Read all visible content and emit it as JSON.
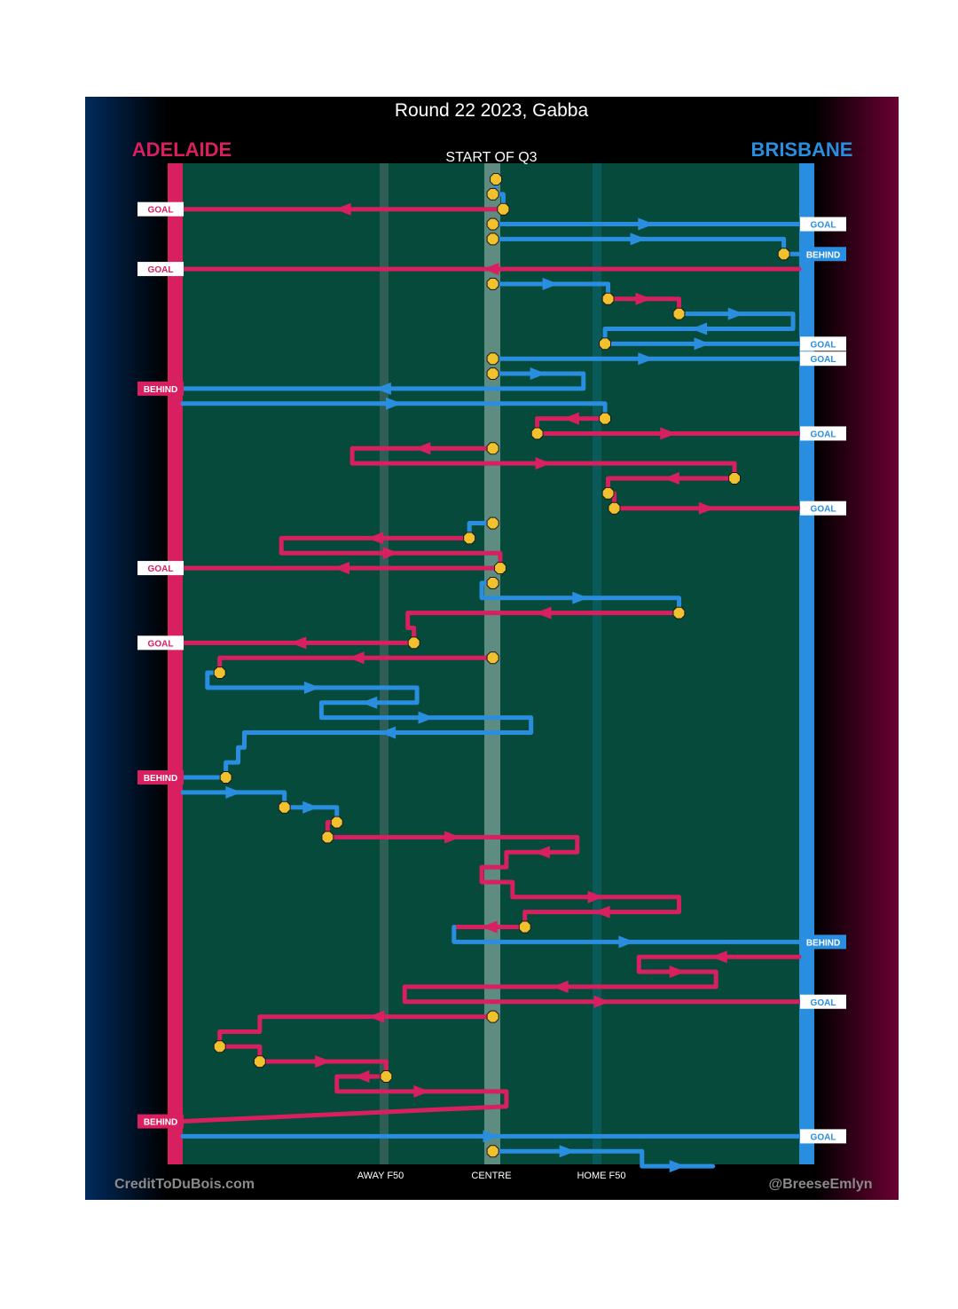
{
  "chart_data": {
    "type": "flow",
    "title": "Round 22 2023, Gabba",
    "subtitle": "START OF Q3",
    "teams": {
      "left": "ADELAIDE",
      "right": "BRISBANE"
    },
    "x_labels": [
      "AWAY F50",
      "CENTRE",
      "HOME F50"
    ],
    "credit_left": "CreditToDuBois.com",
    "credit_right": "@BreeseEmlyn",
    "colors": {
      "adelaide": "#d81f5f",
      "brisbane": "#2a8ee0",
      "field": "#064a3c",
      "marker": "#f2c12e",
      "title_bg": "#000000",
      "left_grad": "#002a5c",
      "right_grad": "#6b0032"
    },
    "x_axis_note": "x positions in percent of ground from Adelaide goal (0) to Brisbane goal (100); stoppage markers as level index",
    "key_lines": {
      "away_f50": 34.5,
      "centre": 50.5,
      "home_f50": 67.5
    },
    "results": [
      {
        "level": 2,
        "team": "adelaide",
        "label": "GOAL"
      },
      {
        "level": 3,
        "team": "brisbane",
        "label": "GOAL"
      },
      {
        "level": 5,
        "team": "brisbane",
        "label": "BEHIND"
      },
      {
        "level": 6,
        "team": "adelaide",
        "label": "GOAL"
      },
      {
        "level": 11,
        "team": "brisbane",
        "label": "GOAL"
      },
      {
        "level": 12,
        "team": "brisbane",
        "label": "GOAL"
      },
      {
        "level": 14,
        "team": "adelaide",
        "label": "BEHIND"
      },
      {
        "level": 17,
        "team": "brisbane",
        "label": "GOAL"
      },
      {
        "level": 22,
        "team": "brisbane",
        "label": "GOAL"
      },
      {
        "level": 26,
        "team": "adelaide",
        "label": "GOAL"
      },
      {
        "level": 31,
        "team": "adelaide",
        "label": "GOAL"
      },
      {
        "level": 40,
        "team": "adelaide",
        "label": "BEHIND"
      },
      {
        "level": 51,
        "team": "brisbane",
        "label": "BEHIND"
      },
      {
        "level": 55,
        "team": "brisbane",
        "label": "GOAL"
      },
      {
        "level": 63,
        "team": "adelaide",
        "label": "BEHIND"
      },
      {
        "level": 64,
        "team": "brisbane",
        "label": "GOAL"
      }
    ],
    "chains": [
      {
        "team": "brisbane",
        "points": [
          [
            50.8,
            0
          ],
          [
            50.8,
            0.5
          ],
          [
            50.3,
            1
          ],
          [
            52,
            1
          ],
          [
            52,
            2
          ]
        ]
      },
      {
        "team": "adelaide",
        "points": [
          [
            52,
            2
          ],
          [
            0,
            2
          ]
        ]
      },
      {
        "team": "brisbane",
        "points": [
          [
            50.3,
            3
          ],
          [
            100,
            3
          ]
        ]
      },
      {
        "team": "brisbane",
        "points": [
          [
            50.3,
            4
          ],
          [
            97.5,
            4
          ],
          [
            97.5,
            5
          ],
          [
            100,
            5
          ]
        ]
      },
      {
        "team": "adelaide",
        "points": [
          [
            100,
            6
          ],
          [
            0,
            6
          ]
        ]
      },
      {
        "team": "brisbane",
        "points": [
          [
            50.3,
            7
          ],
          [
            69,
            7
          ],
          [
            69,
            8
          ]
        ]
      },
      {
        "team": "adelaide",
        "points": [
          [
            69,
            8
          ],
          [
            80.5,
            8
          ],
          [
            80.5,
            9
          ]
        ]
      },
      {
        "team": "brisbane",
        "points": [
          [
            80.5,
            9
          ],
          [
            99,
            9
          ],
          [
            99,
            10
          ],
          [
            68.5,
            10
          ],
          [
            68.5,
            11
          ],
          [
            100,
            11
          ]
        ]
      },
      {
        "team": "brisbane",
        "points": [
          [
            50.3,
            12
          ],
          [
            100,
            12
          ]
        ]
      },
      {
        "team": "brisbane",
        "points": [
          [
            50.3,
            13
          ],
          [
            65,
            13
          ],
          [
            65,
            14
          ],
          [
            0,
            14
          ]
        ]
      },
      {
        "team": "brisbane",
        "points": [
          [
            0,
            15
          ],
          [
            68.5,
            15
          ],
          [
            68.5,
            16
          ]
        ]
      },
      {
        "team": "adelaide",
        "points": [
          [
            68.5,
            16
          ],
          [
            57.5,
            16
          ],
          [
            57.5,
            17
          ],
          [
            100,
            17
          ]
        ]
      },
      {
        "team": "adelaide",
        "points": [
          [
            50.3,
            18
          ],
          [
            27.5,
            18
          ],
          [
            27.5,
            19
          ],
          [
            89.5,
            19
          ],
          [
            89.5,
            20
          ]
        ]
      },
      {
        "team": "adelaide",
        "points": [
          [
            89.5,
            20
          ],
          [
            69,
            20
          ],
          [
            69,
            21
          ],
          [
            70,
            21
          ],
          [
            70,
            22
          ],
          [
            100,
            22
          ]
        ]
      },
      {
        "team": "brisbane",
        "points": [
          [
            50.3,
            23
          ],
          [
            46.5,
            23
          ],
          [
            46.5,
            24
          ]
        ]
      },
      {
        "team": "adelaide",
        "points": [
          [
            46.5,
            24
          ],
          [
            16,
            24
          ],
          [
            16,
            25
          ],
          [
            51.5,
            25
          ],
          [
            51.5,
            26
          ],
          [
            0,
            26
          ]
        ]
      },
      {
        "team": "brisbane",
        "points": [
          [
            50.3,
            27
          ],
          [
            48.5,
            27
          ],
          [
            48.5,
            28
          ],
          [
            80.5,
            28
          ],
          [
            80.5,
            29
          ]
        ]
      },
      {
        "team": "adelaide",
        "points": [
          [
            80.5,
            29
          ],
          [
            36.5,
            29
          ],
          [
            36.5,
            30
          ],
          [
            37.5,
            30
          ],
          [
            37.5,
            31
          ],
          [
            0,
            31
          ]
        ]
      },
      {
        "team": "adelaide",
        "points": [
          [
            50.3,
            32
          ],
          [
            6,
            32
          ],
          [
            6,
            33
          ]
        ]
      },
      {
        "team": "brisbane",
        "points": [
          [
            6,
            33
          ],
          [
            4,
            33
          ],
          [
            4,
            34
          ],
          [
            38,
            34
          ],
          [
            38,
            35
          ],
          [
            22.5,
            35
          ],
          [
            22.5,
            36
          ],
          [
            56.5,
            36
          ],
          [
            56.5,
            37
          ],
          [
            10,
            37
          ],
          [
            10,
            38
          ],
          [
            9,
            38
          ],
          [
            9,
            39
          ],
          [
            7,
            39
          ],
          [
            7,
            40
          ],
          [
            0,
            40
          ]
        ]
      },
      {
        "team": "brisbane",
        "points": [
          [
            0,
            41
          ],
          [
            16.5,
            41
          ],
          [
            16.5,
            42
          ],
          [
            25,
            42
          ],
          [
            25,
            43
          ]
        ]
      },
      {
        "team": "adelaide",
        "points": [
          [
            25,
            43
          ],
          [
            23.5,
            43
          ],
          [
            23.5,
            44
          ],
          [
            64,
            44
          ],
          [
            64,
            45
          ],
          [
            52.5,
            45
          ],
          [
            52.5,
            46
          ],
          [
            48.5,
            46
          ],
          [
            48.5,
            47
          ],
          [
            53.5,
            47
          ],
          [
            53.5,
            48
          ],
          [
            80.5,
            48
          ],
          [
            80.5,
            49
          ],
          [
            55.5,
            49
          ],
          [
            55.5,
            50
          ],
          [
            44,
            50
          ]
        ]
      },
      {
        "team": "brisbane",
        "points": [
          [
            44,
            50
          ],
          [
            44,
            51
          ],
          [
            100,
            51
          ]
        ]
      },
      {
        "team": "adelaide",
        "points": [
          [
            100,
            52
          ],
          [
            74,
            52
          ],
          [
            74,
            53
          ],
          [
            86.5,
            53
          ],
          [
            86.5,
            54
          ],
          [
            36,
            54
          ],
          [
            36,
            55
          ],
          [
            100,
            55
          ]
        ]
      },
      {
        "team": "adelaide",
        "points": [
          [
            50.3,
            56
          ],
          [
            12.5,
            56
          ],
          [
            12.5,
            57
          ],
          [
            6,
            57
          ],
          [
            6,
            58
          ],
          [
            12.5,
            58
          ],
          [
            12.5,
            59
          ],
          [
            33,
            59
          ],
          [
            33,
            60
          ],
          [
            25,
            60
          ],
          [
            25,
            61
          ],
          [
            52.5,
            61
          ],
          [
            52.5,
            62
          ],
          [
            0,
            63
          ]
        ]
      },
      {
        "team": "brisbane",
        "points": [
          [
            0,
            64
          ],
          [
            100,
            64
          ]
        ]
      },
      {
        "team": "brisbane",
        "points": [
          [
            50.3,
            65
          ],
          [
            74.5,
            65
          ],
          [
            74.5,
            66
          ],
          [
            86,
            66
          ]
        ]
      }
    ],
    "markers": [
      [
        50.8,
        0
      ],
      [
        50.3,
        1
      ],
      [
        52,
        2
      ],
      [
        50.3,
        3
      ],
      [
        50.3,
        4
      ],
      [
        97.5,
        5
      ],
      [
        50.3,
        7
      ],
      [
        69,
        8
      ],
      [
        80.5,
        9
      ],
      [
        68.5,
        11
      ],
      [
        50.3,
        12
      ],
      [
        50.3,
        13
      ],
      [
        68.5,
        16
      ],
      [
        57.5,
        17
      ],
      [
        50.3,
        18
      ],
      [
        89.5,
        20
      ],
      [
        69,
        21
      ],
      [
        70,
        22
      ],
      [
        50.3,
        23
      ],
      [
        46.5,
        24
      ],
      [
        51.5,
        26
      ],
      [
        50.3,
        27
      ],
      [
        80.5,
        29
      ],
      [
        37.5,
        31
      ],
      [
        50.3,
        32
      ],
      [
        6,
        33
      ],
      [
        7,
        40
      ],
      [
        16.5,
        42
      ],
      [
        25,
        43
      ],
      [
        23.5,
        44
      ],
      [
        55.5,
        50
      ],
      [
        50.3,
        56
      ],
      [
        6,
        58
      ],
      [
        12.5,
        59
      ],
      [
        33,
        60
      ],
      [
        50.3,
        65
      ]
    ]
  }
}
